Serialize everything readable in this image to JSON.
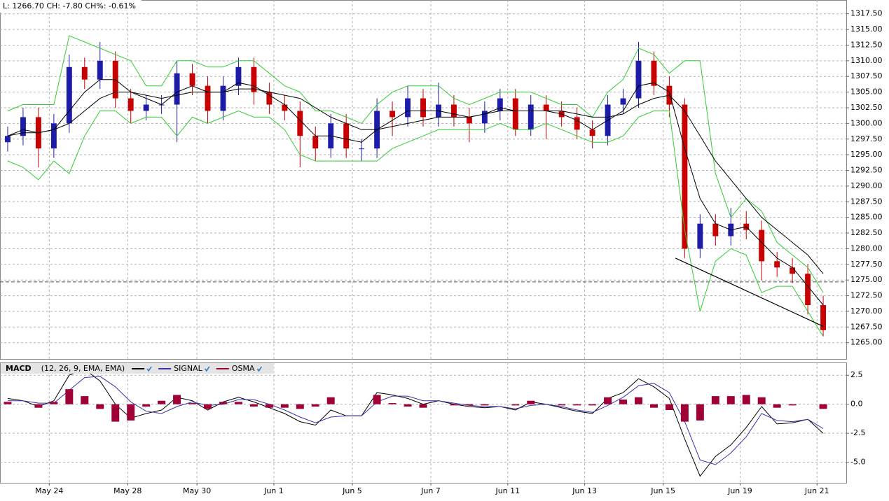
{
  "chart_data": [
    {
      "type": "candlestick",
      "title": "L: 1266.70 CH: -7.80 CH%: -0.61%",
      "x": [
        0.5,
        1.5,
        2.5,
        3.5,
        4.5,
        5.5,
        6.5,
        7.5,
        8.5,
        9.5,
        10.5,
        11.5,
        12.5,
        13.5,
        14.5,
        15.5,
        16.5,
        17.5,
        18.5,
        19.5,
        20.5,
        21.5,
        22.5,
        23.5,
        24.5,
        25.5,
        26.5,
        27.5,
        28.5,
        29.5,
        30.5,
        31.5,
        32.5,
        33.5,
        34.5,
        35.5,
        36.5,
        37.5,
        38.5,
        39.5,
        40.5,
        41.5,
        42.5,
        43.5,
        44.5,
        45.5,
        46.5,
        47.5,
        48.5,
        49.5,
        50.5,
        51.5,
        52.5,
        53.5
      ],
      "open": [
        1297,
        1298,
        1301,
        1296,
        1300,
        1309,
        1307,
        1310,
        1304,
        1302,
        1303,
        1303,
        1308,
        1306,
        1302,
        1306,
        1309,
        1305,
        1303,
        1302,
        1298,
        1296,
        1300,
        1296,
        1296,
        1302,
        1301,
        1304,
        1301,
        1303,
        1301,
        1300,
        1302,
        1304,
        1299,
        1303,
        1302,
        1301,
        1299,
        1298,
        1303,
        1304,
        1310,
        1306,
        1303,
        1280,
        1284,
        1282,
        1284,
        1283,
        1278,
        1277,
        1276,
        1271
      ],
      "high": [
        1299.5,
        1302.5,
        1302.5,
        1301.5,
        1311,
        1310.5,
        1313,
        1311.5,
        1305.5,
        1304.5,
        1304.5,
        1310,
        1309.5,
        1307.5,
        1307.5,
        1310.5,
        1310.5,
        1306.5,
        1304.5,
        1303.5,
        1299.5,
        1301.5,
        1301.5,
        1297.5,
        1304,
        1303.5,
        1306,
        1305.5,
        1306.5,
        1304.5,
        1302.5,
        1303.5,
        1305.5,
        1305.5,
        1304.5,
        1304.5,
        1303.5,
        1302.5,
        1300.5,
        1304.5,
        1305.5,
        1313,
        1311.5,
        1307.5,
        1304,
        1285.5,
        1285.5,
        1286.5,
        1286,
        1284.5,
        1279.5,
        1278.5,
        1277.5,
        1272.5
      ],
      "low": [
        1295.5,
        1296.5,
        1293,
        1294.5,
        1298.5,
        1305.5,
        1305.5,
        1302.5,
        1300,
        1300.5,
        1301.5,
        1297,
        1304.5,
        1300,
        1300.5,
        1304.5,
        1303,
        1301.5,
        1300.5,
        1293,
        1294,
        1294.5,
        1294.5,
        1294,
        1294.5,
        1298,
        1299.5,
        1299.5,
        1299.5,
        1299.5,
        1297,
        1298.5,
        1300.5,
        1298,
        1298,
        1297.5,
        1299.5,
        1297.5,
        1296,
        1296.5,
        1301.5,
        1302.5,
        1304.5,
        1301,
        1278.5,
        1278.5,
        1280.5,
        1280.5,
        1281.5,
        1275,
        1275.5,
        1274.5,
        1269.5,
        1266
      ],
      "close": [
        1298,
        1301,
        1296,
        1300,
        1309,
        1307,
        1310,
        1304,
        1302,
        1303,
        1303,
        1308,
        1306,
        1302,
        1306,
        1309,
        1305,
        1303,
        1302,
        1298,
        1296,
        1300,
        1296,
        1296,
        1302,
        1301,
        1304,
        1301,
        1303,
        1301,
        1300,
        1302,
        1304,
        1299,
        1303,
        1302,
        1301,
        1299,
        1298,
        1303,
        1304,
        1310,
        1306,
        1303,
        1280,
        1284,
        1282,
        1284,
        1283,
        1278,
        1277,
        1276,
        1271,
        1267
      ],
      "up_color": "#1c1ca8",
      "down_color": "#c80000",
      "overlays": [
        {
          "color": "#33cc33",
          "values": [
            1302,
            1303,
            1303,
            1303,
            1314,
            1313,
            1312,
            1311,
            1310,
            1306,
            1306,
            1310,
            1310,
            1309,
            1309,
            1310,
            1310,
            1308,
            1306,
            1305,
            1302,
            1302,
            1301,
            1300,
            1303,
            1305,
            1306,
            1306,
            1306,
            1304,
            1303,
            1304,
            1305,
            1305,
            1305,
            1304,
            1303,
            1303,
            1301,
            1305,
            1307,
            1312,
            1311,
            1308,
            1310,
            1310,
            1292,
            1285,
            1288,
            1286,
            1281,
            1279,
            1277,
            1273
          ]
        },
        {
          "color": "#33cc33",
          "values": [
            1294,
            1293,
            1291,
            1294,
            1292,
            1298,
            1302,
            1302,
            1300,
            1301,
            1301,
            1298,
            1301,
            1300,
            1301,
            1302,
            1301,
            1301,
            1299,
            1295,
            1294,
            1294,
            1294,
            1294,
            1294,
            1296,
            1297,
            1298,
            1299,
            1299,
            1299,
            1299,
            1300,
            1299,
            1299,
            1300,
            1299,
            1298,
            1297,
            1297,
            1298,
            1301,
            1302,
            1302,
            1283,
            1270,
            1278,
            1280,
            1279,
            1273,
            1274,
            1274,
            1270,
            1266
          ]
        },
        {
          "color": "#000000",
          "values": [
            1298,
            1299,
            1298.5,
            1299,
            1302,
            1305,
            1307,
            1307,
            1305,
            1304,
            1303,
            1305,
            1306,
            1305,
            1305,
            1306.5,
            1306,
            1304.5,
            1303,
            1300.5,
            1298,
            1298,
            1297.5,
            1297,
            1299,
            1300.5,
            1302,
            1302,
            1302,
            1301.5,
            1301,
            1301.5,
            1302.5,
            1302,
            1302,
            1302,
            1301.5,
            1300.5,
            1299,
            1300.5,
            1302,
            1306,
            1306.5,
            1305,
            1296,
            1288,
            1284,
            1283,
            1283.5,
            1281,
            1278.5,
            1277,
            1274,
            1271
          ]
        },
        {
          "color": "#000000",
          "values": [
            1298,
            1298.5,
            1298.5,
            1299,
            1300,
            1302,
            1304,
            1305,
            1305,
            1304.5,
            1304,
            1304.5,
            1305,
            1305,
            1305,
            1305.5,
            1305.5,
            1305,
            1304.5,
            1304,
            1302.5,
            1301,
            1300,
            1299,
            1299,
            1299.5,
            1300,
            1300.5,
            1301,
            1301,
            1301,
            1301.5,
            1302,
            1302,
            1302,
            1302,
            1302,
            1301.5,
            1301,
            1301,
            1301.5,
            1303,
            1304,
            1304.5,
            1302,
            1298,
            1294,
            1291,
            1288,
            1285,
            1283,
            1281,
            1279,
            1276
          ]
        }
      ],
      "reference_line": 1274.7,
      "trendline": {
        "x": [
          43.9,
          53.5
        ],
        "values": [
          1278.5,
          1267.6
        ]
      },
      "xlim": [
        0,
        55
      ],
      "xticks": [
        3.2,
        8.3,
        12.8,
        17.8,
        22.9,
        28.0,
        33.0,
        38.0,
        43.1,
        48.1,
        53.1
      ],
      "ylim": [
        1262.4,
        1319.7
      ],
      "yticks": [
        {
          "value": 1265,
          "label": "1265.00"
        },
        {
          "value": 1267.5,
          "label": "1267.50"
        },
        {
          "value": 1270,
          "label": "1270.00"
        },
        {
          "value": 1272.5,
          "label": "1272.50"
        },
        {
          "value": 1275,
          "label": "1275.00"
        },
        {
          "value": 1277.5,
          "label": "1277.50"
        },
        {
          "value": 1280,
          "label": "1280.00"
        },
        {
          "value": 1282.5,
          "label": "1282.50"
        },
        {
          "value": 1285,
          "label": "1285.00"
        },
        {
          "value": 1287.5,
          "label": "1287.50"
        },
        {
          "value": 1290,
          "label": "1290.00"
        },
        {
          "value": 1292.5,
          "label": "1292.50"
        },
        {
          "value": 1295,
          "label": "1295.00"
        },
        {
          "value": 1297.5,
          "label": "1297.50"
        },
        {
          "value": 1300,
          "label": "1300.00"
        },
        {
          "value": 1302.5,
          "label": "1302.50"
        },
        {
          "value": 1305,
          "label": "1305.00"
        },
        {
          "value": 1307.5,
          "label": "1307.50"
        },
        {
          "value": 1310,
          "label": "1310.00"
        },
        {
          "value": 1312.5,
          "label": "1312.50"
        },
        {
          "value": 1315,
          "label": "1315.00"
        },
        {
          "value": 1317.5,
          "label": "1317.50"
        }
      ],
      "grid": true
    },
    {
      "type": "macd",
      "title": "MACD",
      "subtitle": "(12, 26, 9, EMA, EMA)",
      "x": [
        0.5,
        1.5,
        2.5,
        3.5,
        4.5,
        5.5,
        6.5,
        7.5,
        8.5,
        9.5,
        10.5,
        11.5,
        12.5,
        13.5,
        14.5,
        15.5,
        16.5,
        17.5,
        18.5,
        19.5,
        20.5,
        21.5,
        22.5,
        23.5,
        24.5,
        25.5,
        26.5,
        27.5,
        28.5,
        29.5,
        30.5,
        31.5,
        32.5,
        33.5,
        34.5,
        35.5,
        36.5,
        37.5,
        38.5,
        39.5,
        40.5,
        41.5,
        42.5,
        43.5,
        44.5,
        45.5,
        46.5,
        47.5,
        48.5,
        49.5,
        50.5,
        51.5,
        52.5,
        53.5
      ],
      "series": [
        {
          "color": "#000000",
          "values": [
            0.5,
            0.3,
            -0.2,
            0.3,
            2.5,
            3.0,
            2.0,
            0.0,
            -1.2,
            -0.8,
            -0.5,
            0.6,
            0.3,
            -0.5,
            0.2,
            0.6,
            0.2,
            -0.3,
            -0.8,
            -1.5,
            -1.8,
            -0.5,
            -1.0,
            -1.0,
            1.0,
            0.8,
            0.5,
            0.0,
            0.3,
            0.0,
            -0.2,
            -0.3,
            -0.2,
            -0.5,
            0.2,
            0.0,
            -0.3,
            -0.6,
            -0.8,
            0.5,
            1.0,
            2.2,
            1.5,
            0.5,
            -3.0,
            -6.2,
            -4.5,
            -3.5,
            -2.0,
            -0.2,
            -1.7,
            -1.6,
            -1.3,
            -2.5
          ]
        },
        {
          "name": "SIGNAL",
          "color": "#3a2fb0",
          "values": [
            0.3,
            0.3,
            0.1,
            0.1,
            1.2,
            2.3,
            2.4,
            1.5,
            0.2,
            -0.6,
            -0.8,
            -0.2,
            0.2,
            -0.1,
            0.0,
            0.4,
            0.4,
            0.0,
            -0.5,
            -1.1,
            -1.6,
            -1.1,
            -1.0,
            -1.0,
            0.2,
            0.7,
            0.7,
            0.3,
            0.3,
            0.1,
            -0.1,
            -0.2,
            -0.2,
            -0.4,
            -0.1,
            0.0,
            -0.2,
            -0.5,
            -0.7,
            -0.1,
            0.6,
            1.6,
            1.8,
            1.0,
            -1.5,
            -4.8,
            -5.2,
            -4.2,
            -2.8,
            -0.8,
            -1.4,
            -1.5,
            -1.3,
            -2.1
          ]
        },
        {
          "name": "OSMA",
          "color": "#a00038",
          "kind": "histogram",
          "values": [
            0.2,
            0.0,
            -0.3,
            0.2,
            1.3,
            0.7,
            -0.4,
            -1.5,
            -1.4,
            -0.2,
            0.3,
            0.8,
            0.1,
            -0.4,
            0.2,
            0.2,
            -0.2,
            -0.3,
            -0.3,
            -0.4,
            -0.2,
            0.6,
            0.0,
            0.0,
            0.8,
            0.1,
            -0.2,
            -0.3,
            0.0,
            -0.1,
            -0.1,
            -0.1,
            0.0,
            -0.1,
            0.3,
            0.0,
            -0.1,
            -0.1,
            -0.1,
            0.6,
            0.4,
            0.6,
            -0.3,
            -0.5,
            -1.5,
            -1.4,
            0.7,
            0.7,
            0.8,
            0.6,
            -0.3,
            -0.1,
            0.0,
            -0.4
          ]
        }
      ],
      "xlim": [
        0,
        55
      ],
      "xticks": [
        {
          "value": 3.2,
          "label": "May 24"
        },
        {
          "value": 8.3,
          "label": "May 28"
        },
        {
          "value": 12.8,
          "label": "May 30"
        },
        {
          "value": 17.8,
          "label": "Jun 1"
        },
        {
          "value": 22.9,
          "label": "Jun 5"
        },
        {
          "value": 28.0,
          "label": "Jun 7"
        },
        {
          "value": 33.0,
          "label": "Jun 11"
        },
        {
          "value": 38.0,
          "label": "Jun 13"
        },
        {
          "value": 43.1,
          "label": "Jun 15"
        },
        {
          "value": 48.1,
          "label": "Jun 19"
        },
        {
          "value": 53.1,
          "label": "Jun 21"
        }
      ],
      "ylim": [
        -6.77,
        3.6
      ],
      "yticks": [
        2.5,
        {
          "value": 0,
          "label": "0.0"
        },
        -2.5,
        {
          "value": -5,
          "label": "-5.0"
        }
      ],
      "grid": true
    }
  ]
}
